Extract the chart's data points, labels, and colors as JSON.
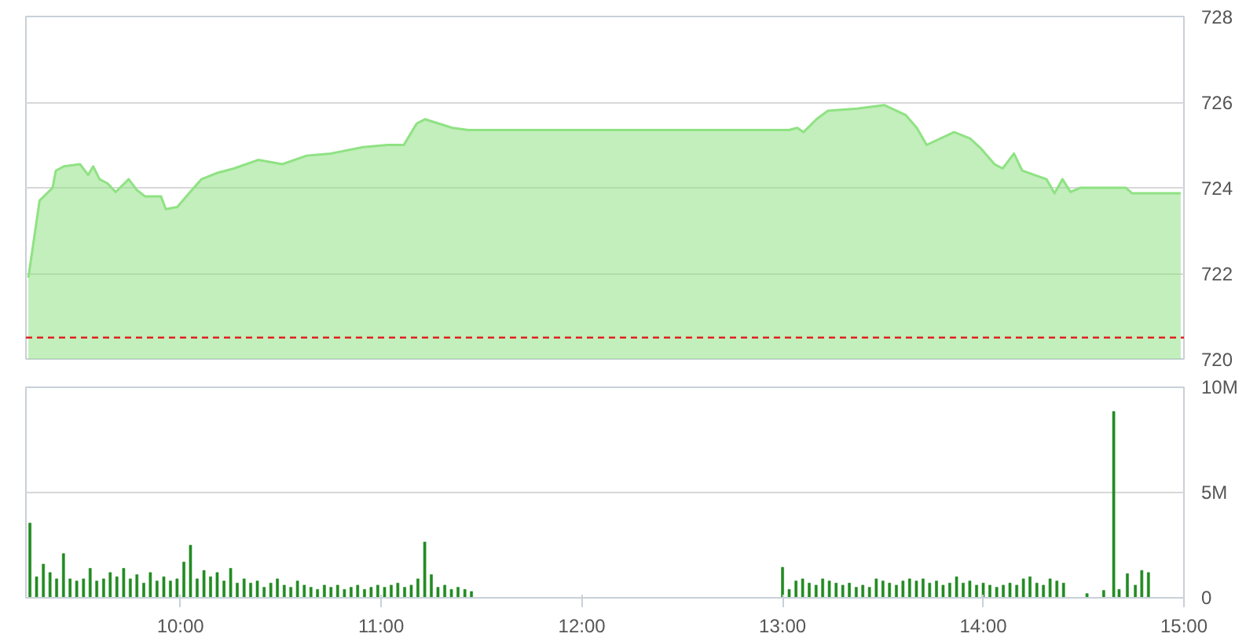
{
  "chart_data": [
    {
      "type": "area",
      "x": [
        9.242,
        9.298,
        9.363,
        9.379,
        9.419,
        9.5,
        9.54,
        9.565,
        9.597,
        9.637,
        9.677,
        9.742,
        9.782,
        9.823,
        9.903,
        9.927,
        9.984,
        10.048,
        10.105,
        10.185,
        10.266,
        10.387,
        10.508,
        10.629,
        10.75,
        10.911,
        11.032,
        11.113,
        11.177,
        11.218,
        11.355,
        11.435,
        11.476,
        13.032,
        13.073,
        13.105,
        13.169,
        13.226,
        13.371,
        13.508,
        13.613,
        13.669,
        13.718,
        13.855,
        13.935,
        13.992,
        14.056,
        14.097,
        14.153,
        14.194,
        14.315,
        14.355,
        14.395,
        14.435,
        14.484,
        14.71,
        14.742,
        14.984
      ],
      "series": [
        {
          "color": "#8fe283",
          "values": [
            721.9,
            723.7,
            724.0,
            724.4,
            724.5,
            724.55,
            724.3,
            724.5,
            724.2,
            724.1,
            723.9,
            724.2,
            723.95,
            723.8,
            723.8,
            723.5,
            723.55,
            723.9,
            724.2,
            724.35,
            724.45,
            724.65,
            724.55,
            724.75,
            724.8,
            724.95,
            725.0,
            725.0,
            725.5,
            725.6,
            725.4,
            725.35,
            725.35,
            725.35,
            725.4,
            725.3,
            725.6,
            725.8,
            725.85,
            725.93,
            725.7,
            725.4,
            725.0,
            725.3,
            725.15,
            724.9,
            724.55,
            724.45,
            724.8,
            724.4,
            724.2,
            723.87,
            724.2,
            723.9,
            724.0,
            724.0,
            723.87,
            723.87
          ]
        }
      ],
      "xlim": [
        9.23,
        15.0
      ],
      "ylim": [
        720,
        728
      ],
      "yticks": [
        720,
        722,
        724,
        726,
        728
      ],
      "ref_lines": [
        {
          "axis": "y",
          "value": 720.5,
          "color": "#e02020",
          "line_style": "dashed"
        }
      ],
      "grid": "y",
      "tick_labels": "y"
    },
    {
      "type": "bar",
      "x": [
        9.25,
        9.283,
        9.317,
        9.35,
        9.383,
        9.417,
        9.45,
        9.483,
        9.517,
        9.55,
        9.583,
        9.617,
        9.65,
        9.683,
        9.717,
        9.75,
        9.783,
        9.817,
        9.85,
        9.883,
        9.917,
        9.95,
        9.983,
        10.017,
        10.05,
        10.083,
        10.117,
        10.15,
        10.183,
        10.217,
        10.25,
        10.283,
        10.317,
        10.35,
        10.383,
        10.417,
        10.45,
        10.483,
        10.517,
        10.55,
        10.583,
        10.617,
        10.65,
        10.683,
        10.717,
        10.75,
        10.783,
        10.817,
        10.85,
        10.883,
        10.917,
        10.95,
        10.983,
        11.017,
        11.05,
        11.083,
        11.117,
        11.15,
        11.183,
        11.217,
        11.25,
        11.283,
        11.317,
        11.35,
        11.383,
        11.417,
        11.45,
        13.0,
        13.033,
        13.067,
        13.1,
        13.133,
        13.167,
        13.2,
        13.233,
        13.267,
        13.3,
        13.333,
        13.367,
        13.4,
        13.433,
        13.467,
        13.5,
        13.533,
        13.567,
        13.6,
        13.633,
        13.667,
        13.7,
        13.733,
        13.767,
        13.8,
        13.833,
        13.867,
        13.9,
        13.933,
        13.967,
        14.0,
        14.033,
        14.067,
        14.1,
        14.133,
        14.167,
        14.2,
        14.233,
        14.267,
        14.3,
        14.333,
        14.367,
        14.4,
        14.517,
        14.6,
        14.65,
        14.677,
        14.718,
        14.758,
        14.79,
        14.823
      ],
      "series": [
        {
          "color": "#228b22",
          "values": [
            3.55,
            1.0,
            1.6,
            1.2,
            0.9,
            2.1,
            0.9,
            0.8,
            0.9,
            1.4,
            0.8,
            0.9,
            1.2,
            1.0,
            1.4,
            0.9,
            1.1,
            0.7,
            1.2,
            0.8,
            1.0,
            0.8,
            0.9,
            1.7,
            2.5,
            0.9,
            1.3,
            1.0,
            1.2,
            0.8,
            1.4,
            0.7,
            0.9,
            0.7,
            0.8,
            0.5,
            0.7,
            0.9,
            0.6,
            0.5,
            0.8,
            0.6,
            0.5,
            0.4,
            0.6,
            0.5,
            0.6,
            0.4,
            0.5,
            0.6,
            0.4,
            0.5,
            0.6,
            0.5,
            0.6,
            0.7,
            0.5,
            0.6,
            0.9,
            2.65,
            1.1,
            0.5,
            0.6,
            0.4,
            0.5,
            0.4,
            0.3,
            1.45,
            0.4,
            0.8,
            0.9,
            0.7,
            0.6,
            0.9,
            0.8,
            0.7,
            0.6,
            0.7,
            0.5,
            0.6,
            0.5,
            0.9,
            0.8,
            0.7,
            0.6,
            0.8,
            0.9,
            0.8,
            0.9,
            0.7,
            0.8,
            0.6,
            0.7,
            1.0,
            0.7,
            0.8,
            0.6,
            0.7,
            0.6,
            0.5,
            0.6,
            0.7,
            0.6,
            0.9,
            1.0,
            0.7,
            0.6,
            0.9,
            0.8,
            0.7,
            0.2,
            0.35,
            8.85,
            0.4,
            1.15,
            0.6,
            1.3,
            1.2
          ]
        }
      ],
      "xlim": [
        9.23,
        15.0
      ],
      "xticks": [
        {
          "value": 10,
          "label": "10:00"
        },
        {
          "value": 11,
          "label": "11:00"
        },
        {
          "value": 12,
          "label": "12:00"
        },
        {
          "value": 13,
          "label": "13:00"
        },
        {
          "value": 14,
          "label": "14:00"
        },
        {
          "value": 15,
          "label": "15:00"
        }
      ],
      "ylim": [
        0,
        10
      ],
      "yticks": [
        0,
        {
          "value": 5,
          "label": "5M"
        },
        {
          "value": 10,
          "label": "10M"
        }
      ],
      "grid": "y"
    }
  ]
}
